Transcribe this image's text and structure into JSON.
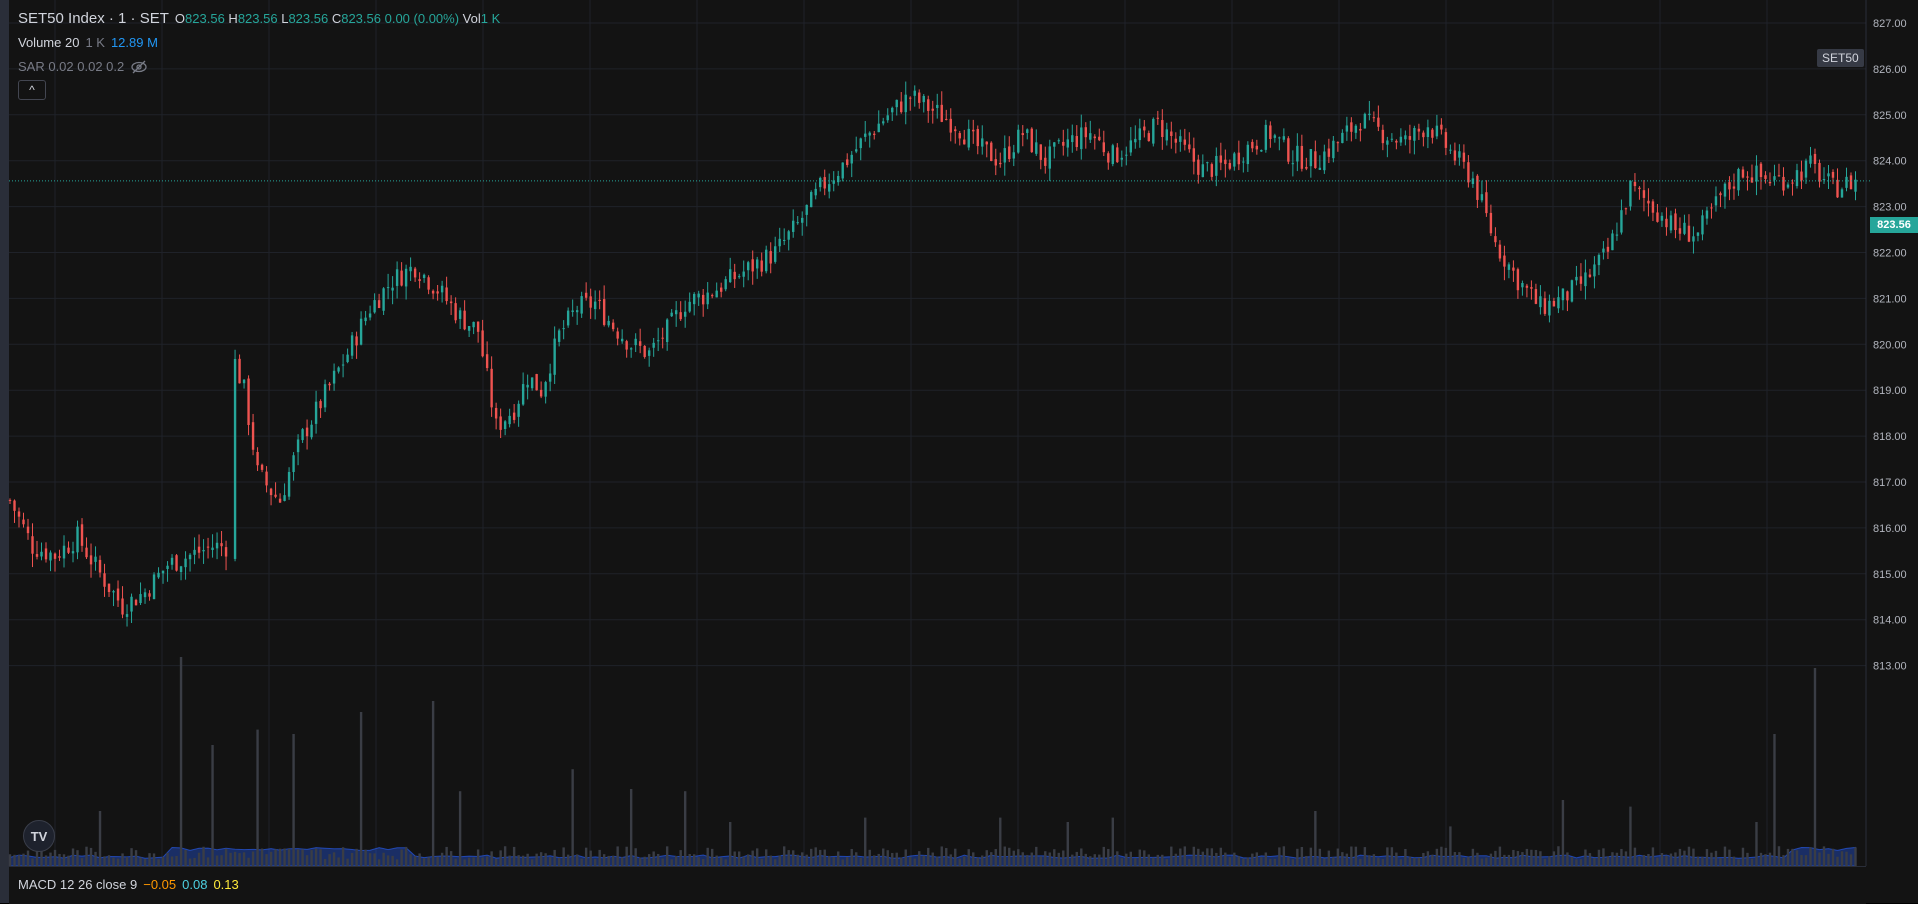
{
  "legend": {
    "symbol": "SET50 Index · 1 · SET",
    "open_label": "O",
    "open": "823.56",
    "high_label": "H",
    "high": "823.56",
    "low_label": "L",
    "low": "823.56",
    "close_label": "C",
    "close": "823.56",
    "change": "0.00 (0.00%)",
    "vol_label": "Vol",
    "vol": "1 K",
    "volume_name": "Volume 20",
    "volume_val1": "1 K",
    "volume_val2": "12.89 M",
    "sar": "SAR 0.02 0.02 0.2",
    "collapse_glyph": "^"
  },
  "symbol_tag": "SET50",
  "price_tag": "823.56",
  "logo_text": "TV",
  "macd": {
    "name": "MACD 12 26 close 9",
    "v1": "−0.05",
    "v2": "0.08",
    "v3": "0.13"
  },
  "colors": {
    "up": "#26a69a",
    "down": "#ef5350",
    "volume": "#2962ff",
    "bg": "#131313",
    "grid": "#1f2229"
  },
  "icons": {
    "hide": "eye-crossed-icon",
    "logo": "tradingview-logo-icon",
    "collapse": "chevron-up-icon"
  },
  "chart_data": {
    "type": "candlestick",
    "ylim": [
      812.2,
      827.5
    ],
    "yticks": [
      "827.00",
      "826.00",
      "825.00",
      "824.00",
      "823.00",
      "822.00",
      "821.00",
      "820.00",
      "819.00",
      "818.00",
      "817.00",
      "816.00",
      "815.00",
      "814.00",
      "813.00"
    ],
    "ytick_values": [
      827,
      826,
      825,
      824,
      823,
      822,
      821,
      820,
      819,
      818,
      817,
      816,
      815,
      814,
      813
    ],
    "last_price": 823.56,
    "close_path": [
      [
        0,
        816.6
      ],
      [
        5,
        815.6
      ],
      [
        10,
        815.4
      ],
      [
        15,
        815.8
      ],
      [
        20,
        815.0
      ],
      [
        25,
        814.3
      ],
      [
        30,
        814.6
      ],
      [
        35,
        815.2
      ],
      [
        40,
        815.4
      ],
      [
        45,
        815.6
      ],
      [
        48,
        815.6
      ],
      [
        50,
        819.6
      ],
      [
        52,
        819.0
      ],
      [
        55,
        817.2
      ],
      [
        58,
        816.8
      ],
      [
        60,
        816.6
      ],
      [
        62,
        817.2
      ],
      [
        65,
        818.0
      ],
      [
        70,
        818.9
      ],
      [
        75,
        819.8
      ],
      [
        80,
        820.8
      ],
      [
        85,
        821.4
      ],
      [
        90,
        821.7
      ],
      [
        95,
        821.2
      ],
      [
        100,
        820.6
      ],
      [
        104,
        820.3
      ],
      [
        108,
        818.2
      ],
      [
        112,
        818.6
      ],
      [
        115,
        819.3
      ],
      [
        118,
        819.0
      ],
      [
        122,
        820.2
      ],
      [
        126,
        820.8
      ],
      [
        130,
        820.9
      ],
      [
        134,
        820.4
      ],
      [
        138,
        820.0
      ],
      [
        142,
        819.8
      ],
      [
        146,
        820.3
      ],
      [
        150,
        820.9
      ],
      [
        155,
        821.1
      ],
      [
        160,
        821.4
      ],
      [
        165,
        821.7
      ],
      [
        170,
        822.0
      ],
      [
        175,
        822.6
      ],
      [
        180,
        823.4
      ],
      [
        185,
        823.9
      ],
      [
        190,
        824.5
      ],
      [
        195,
        825.0
      ],
      [
        200,
        825.4
      ],
      [
        205,
        825.1
      ],
      [
        210,
        824.8
      ],
      [
        215,
        824.3
      ],
      [
        220,
        824.0
      ],
      [
        225,
        824.6
      ],
      [
        230,
        824.0
      ],
      [
        235,
        824.4
      ],
      [
        240,
        824.6
      ],
      [
        245,
        824.1
      ],
      [
        250,
        824.4
      ],
      [
        255,
        824.8
      ],
      [
        260,
        824.3
      ],
      [
        265,
        823.8
      ],
      [
        270,
        823.9
      ],
      [
        275,
        824.3
      ],
      [
        280,
        824.6
      ],
      [
        285,
        824.1
      ],
      [
        290,
        824.0
      ],
      [
        295,
        824.4
      ],
      [
        300,
        824.9
      ],
      [
        305,
        824.6
      ],
      [
        310,
        824.4
      ],
      [
        315,
        824.8
      ],
      [
        320,
        824.2
      ],
      [
        325,
        823.6
      ],
      [
        330,
        822.2
      ],
      [
        335,
        821.4
      ],
      [
        340,
        820.8
      ],
      [
        345,
        821.0
      ],
      [
        350,
        821.4
      ],
      [
        355,
        822.0
      ],
      [
        360,
        823.4
      ],
      [
        365,
        823.0
      ],
      [
        370,
        822.5
      ],
      [
        375,
        822.4
      ],
      [
        380,
        823.2
      ],
      [
        385,
        823.8
      ],
      [
        390,
        823.6
      ],
      [
        395,
        823.6
      ],
      [
        400,
        823.9
      ],
      [
        405,
        823.4
      ],
      [
        410,
        823.56
      ]
    ],
    "volume_spikes": [
      [
        20,
        0.25
      ],
      [
        38,
        0.95
      ],
      [
        45,
        0.55
      ],
      [
        55,
        0.62
      ],
      [
        63,
        0.6
      ],
      [
        78,
        0.7
      ],
      [
        94,
        0.75
      ],
      [
        100,
        0.34
      ],
      [
        125,
        0.44
      ],
      [
        138,
        0.35
      ],
      [
        150,
        0.34
      ],
      [
        160,
        0.2
      ],
      [
        190,
        0.22
      ],
      [
        220,
        0.22
      ],
      [
        235,
        0.2
      ],
      [
        245,
        0.22
      ],
      [
        290,
        0.25
      ],
      [
        320,
        0.18
      ],
      [
        345,
        0.3
      ],
      [
        360,
        0.27
      ],
      [
        388,
        0.2
      ],
      [
        392,
        0.6
      ],
      [
        401,
        0.9
      ]
    ]
  }
}
